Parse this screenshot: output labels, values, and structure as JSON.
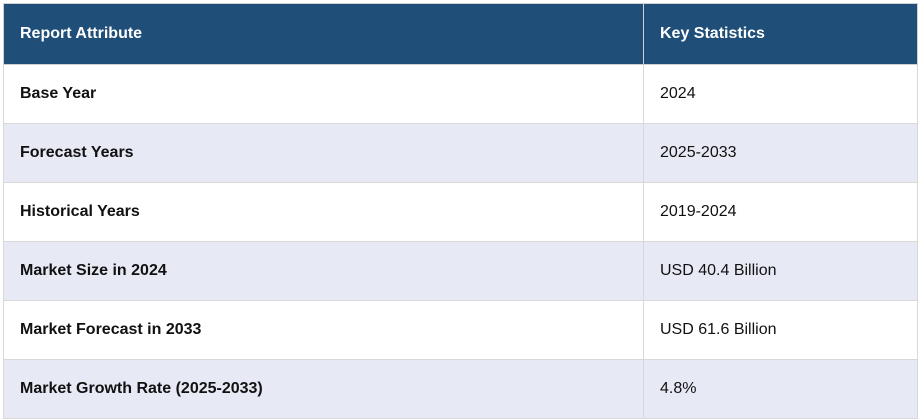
{
  "table": {
    "header": [
      "Report Attribute",
      "Key Statistics"
    ],
    "rows": [
      [
        "Base Year",
        "2024"
      ],
      [
        "Forecast Years",
        "2025-2033"
      ],
      [
        "Historical Years",
        "2019-2024"
      ],
      [
        "Market Size in 2024",
        "USD 40.4 Billion"
      ],
      [
        "Market Forecast in 2033",
        "USD 61.6 Billion"
      ],
      [
        "Market Growth Rate (2025-2033)",
        "4.8%"
      ]
    ]
  }
}
